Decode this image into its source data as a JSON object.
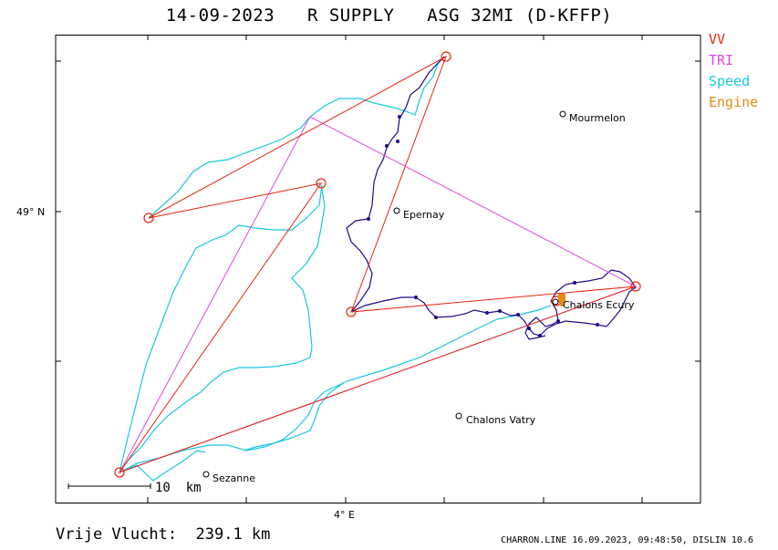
{
  "title": "14-09-2023   R SUPPLY   ASG 32MI (D-KFFP)",
  "legend": [
    {
      "label": "VV",
      "color": "#e8250f"
    },
    {
      "label": "TRI",
      "color": "#e046e0"
    },
    {
      "label": "Speed",
      "color": "#18c8e0"
    },
    {
      "label": "Engine",
      "color": "#e88a1a"
    }
  ],
  "axes": {
    "lat_label": "49° N",
    "lon_label": "4° E"
  },
  "places": [
    {
      "name": "Mourmelon"
    },
    {
      "name": "Epernay"
    },
    {
      "name": "Chalons Ecury"
    },
    {
      "name": "Chalons Vatry"
    },
    {
      "name": "Sezanne"
    }
  ],
  "scale": {
    "label": "10  km"
  },
  "footer": {
    "distance": "Vrije Vlucht:  239.1 km",
    "credit": "CHARRON.LINE 16.09.2023, 09:48:50, DISLIN 10.6"
  },
  "colors": {
    "track_dark": "#1e0a8c",
    "track_light": "#18c8e0",
    "vv": "#e8250f",
    "tri": "#e046e0",
    "engine": "#e88a1a"
  }
}
